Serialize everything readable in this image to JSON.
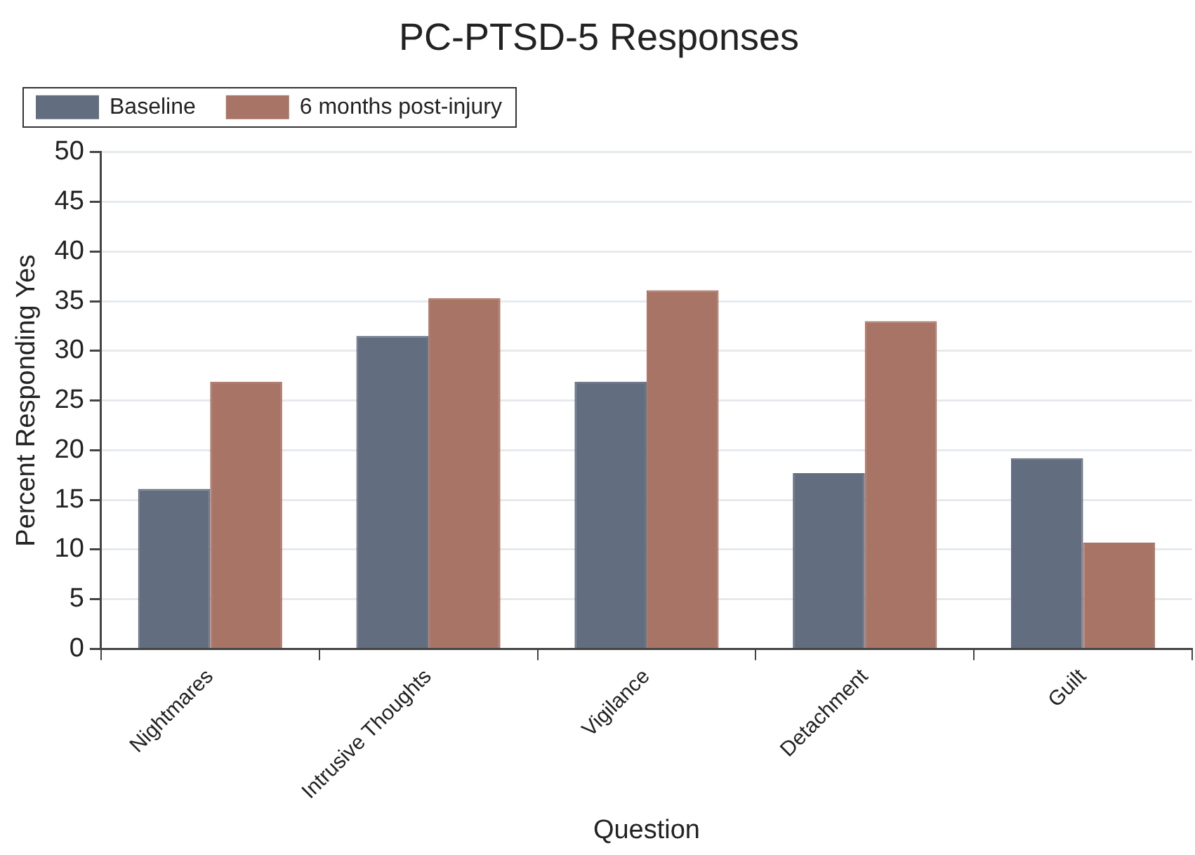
{
  "chart_data": {
    "type": "bar",
    "title": "PC-PTSD-5 Responses",
    "xlabel": "Question",
    "ylabel": "Percent Responding Yes",
    "categories": [
      "Nightmares",
      "Intrusive Thoughts",
      "Vigilance",
      "Detachment",
      "Guilt"
    ],
    "series": [
      {
        "name": "Baseline",
        "color": "#626e80",
        "values": [
          16.1,
          31.5,
          26.9,
          17.7,
          19.2
        ]
      },
      {
        "name": "6 months post-injury",
        "color": "#a87465",
        "values": [
          26.9,
          35.3,
          36.1,
          33.0,
          10.7
        ]
      }
    ],
    "ylim": [
      0,
      50
    ],
    "yticks": [
      0,
      5,
      10,
      15,
      20,
      25,
      30,
      35,
      40,
      45,
      50
    ],
    "grid": "y",
    "legend": "top left"
  }
}
